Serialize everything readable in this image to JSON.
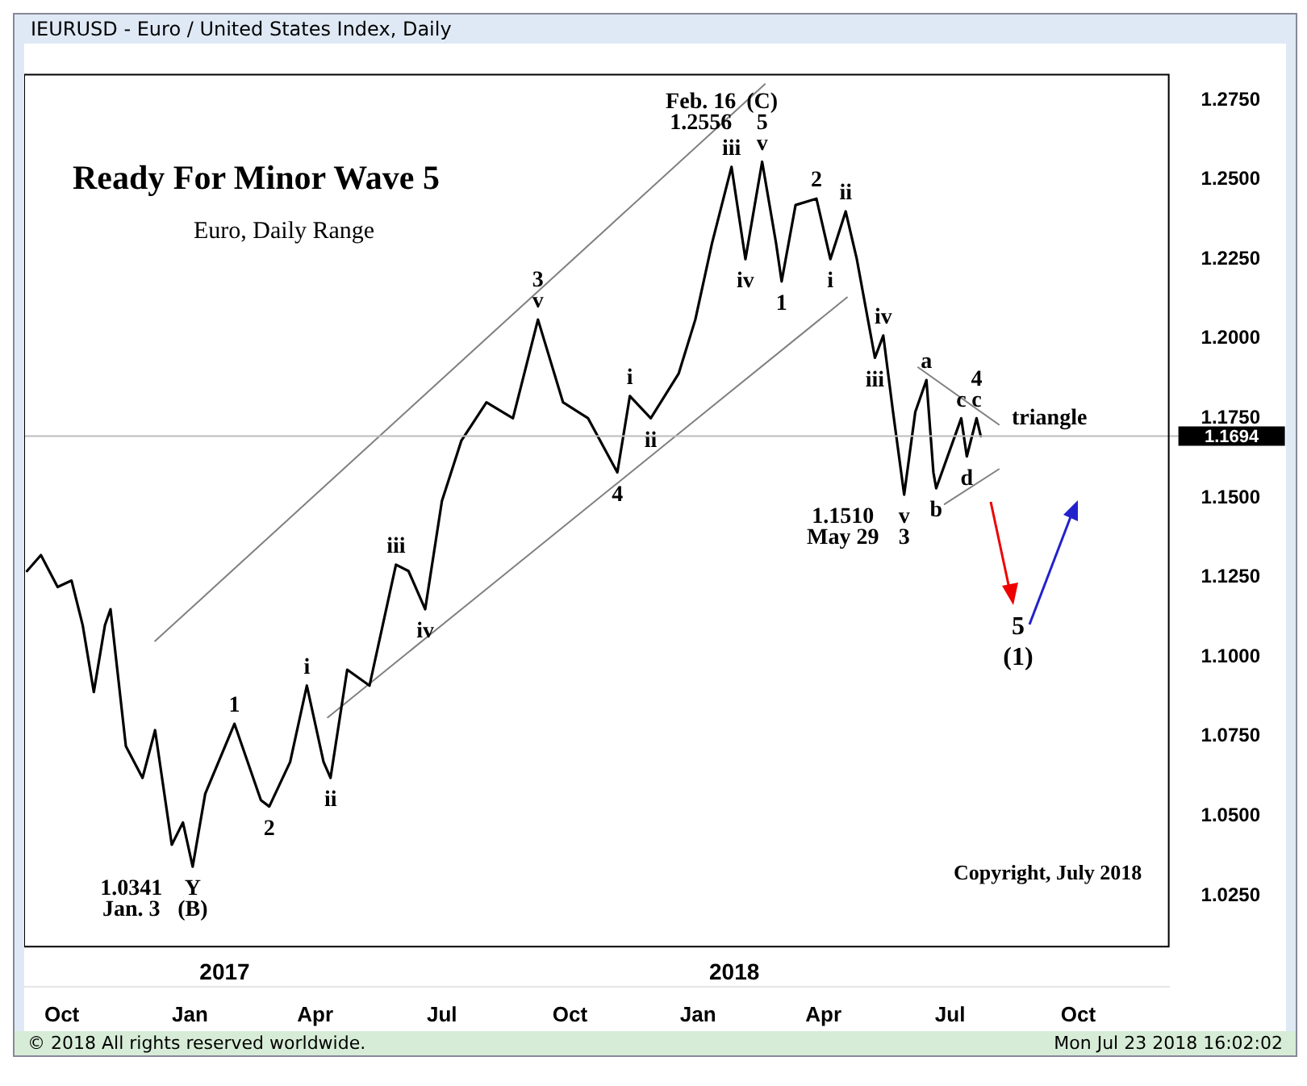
{
  "chart_data": {
    "type": "line",
    "title": "Ready For Minor Wave 5",
    "subtitle": "Euro, Daily Range",
    "xlim": [
      "2016-09-04",
      "2018-12-05"
    ],
    "ylim": [
      1.009,
      1.283
    ],
    "xticks": [
      {
        "value": "2016-10-01",
        "label": "Oct"
      },
      {
        "value": "2017-01-01",
        "label": "Jan"
      },
      {
        "value": "2017-04-01",
        "label": "Apr"
      },
      {
        "value": "2017-07-01",
        "label": "Jul"
      },
      {
        "value": "2017-10-01",
        "label": "Oct"
      },
      {
        "value": "2018-01-01",
        "label": "Jan"
      },
      {
        "value": "2018-04-01",
        "label": "Apr"
      },
      {
        "value": "2018-07-01",
        "label": "Jul"
      },
      {
        "value": "2018-10-01",
        "label": "Oct"
      }
    ],
    "x2lim": [
      "2016-09-04",
      "2018-12-05"
    ],
    "x2ticks": [
      {
        "value": "2017-01-26",
        "label": "2017"
      },
      {
        "value": "2018-01-27",
        "label": "2018"
      }
    ],
    "yticks": [
      {
        "value": 1.025,
        "label": "1.0250"
      },
      {
        "value": 1.05,
        "label": "1.0500"
      },
      {
        "value": 1.075,
        "label": "1.0750"
      },
      {
        "value": 1.1,
        "label": "1.1000"
      },
      {
        "value": 1.125,
        "label": "1.1250"
      },
      {
        "value": 1.15,
        "label": "1.1500"
      },
      {
        "value": 1.175,
        "label": "1.1750"
      },
      {
        "value": 1.2,
        "label": "1.2000"
      },
      {
        "value": 1.225,
        "label": "1.2250"
      },
      {
        "value": 1.25,
        "label": "1.2500"
      },
      {
        "value": 1.275,
        "label": "1.2750"
      }
    ],
    "grid": false,
    "legend": false,
    "marker": "none",
    "line_style": "solid",
    "series": [
      {
        "color": "#000000",
        "x": [
          "2016-09-06",
          "2016-09-16",
          "2016-09-28",
          "2016-10-08",
          "2016-10-16",
          "2016-10-24",
          "2016-11-01",
          "2016-11-05",
          "2016-11-16",
          "2016-11-28",
          "2016-12-07",
          "2016-12-19",
          "2016-12-27",
          "2017-01-03",
          "2017-01-12",
          "2017-02-02",
          "2017-02-21",
          "2017-02-27",
          "2017-03-14",
          "2017-03-26",
          "2017-04-07",
          "2017-04-12",
          "2017-04-24",
          "2017-05-10",
          "2017-05-29",
          "2017-06-07",
          "2017-06-19",
          "2017-07-01",
          "2017-07-15",
          "2017-08-02",
          "2017-08-21",
          "2017-09-08",
          "2017-09-26",
          "2017-10-14",
          "2017-11-04",
          "2017-11-13",
          "2017-11-28",
          "2017-12-18",
          "2017-12-30",
          "2018-01-11",
          "2018-01-25",
          "2018-02-04",
          "2018-02-16",
          "2018-02-26",
          "2018-03-02",
          "2018-03-12",
          "2018-03-27",
          "2018-04-06",
          "2018-04-17",
          "2018-04-25",
          "2018-05-08",
          "2018-05-14",
          "2018-05-21",
          "2018-05-29",
          "2018-06-06",
          "2018-06-14",
          "2018-06-19",
          "2018-06-21",
          "2018-07-09",
          "2018-07-13",
          "2018-07-20",
          "2018-07-23"
        ],
        "values": [
          1.127,
          1.132,
          1.122,
          1.124,
          1.11,
          1.089,
          1.11,
          1.115,
          1.072,
          1.062,
          1.077,
          1.041,
          1.048,
          1.0341,
          1.057,
          1.079,
          1.055,
          1.053,
          1.067,
          1.091,
          1.067,
          1.062,
          1.096,
          1.091,
          1.129,
          1.127,
          1.115,
          1.149,
          1.168,
          1.18,
          1.175,
          1.206,
          1.18,
          1.175,
          1.158,
          1.182,
          1.175,
          1.189,
          1.206,
          1.23,
          1.254,
          1.225,
          1.2556,
          1.23,
          1.218,
          1.242,
          1.244,
          1.225,
          1.24,
          1.225,
          1.194,
          1.201,
          1.177,
          1.151,
          1.177,
          1.187,
          1.158,
          1.153,
          1.175,
          1.163,
          1.175,
          1.1694
        ]
      },
      {
        "color": "#808080",
        "x": [
          "2016-12-07",
          "2018-02-18"
        ],
        "values": [
          1.105,
          1.28
        ]
      },
      {
        "color": "#808080",
        "x": [
          "2017-04-10",
          "2018-04-18"
        ],
        "values": [
          1.081,
          1.213
        ]
      },
      {
        "color": "#808080",
        "x": [
          "2018-06-08",
          "2018-08-05"
        ],
        "values": [
          1.191,
          1.173
        ]
      },
      {
        "color": "#808080",
        "x": [
          "2018-06-27",
          "2018-08-05"
        ],
        "values": [
          1.148,
          1.159
        ]
      }
    ],
    "ref_lines": [
      {
        "axis": "y",
        "value": 1.1694,
        "label": "1.1694"
      }
    ],
    "annotations": [
      "IEURUSD - Euro / United States Index, Daily",
      "Copyright, July 2018",
      "5",
      "(1)",
      "© 2018 All rights reserved worldwide.",
      "Mon Jul 23 2018 16:02:02",
      {
        "text": "v",
        "x": "2018-02-16",
        "y": 1.2556
      },
      {
        "text": "5",
        "x": "2018-02-16",
        "y": 1.2556
      },
      {
        "text": "(C)",
        "x": "2018-02-16",
        "y": 1.2556
      },
      {
        "text": "1.2556",
        "x": "2018-02-16",
        "y": 1.2556
      },
      {
        "text": "Feb. 16",
        "x": "2018-02-16",
        "y": 1.2556
      },
      {
        "text": "iii",
        "x": "2018-01-25",
        "y": 1.254
      },
      {
        "text": "iv",
        "x": "2018-02-04",
        "y": 1.225
      },
      {
        "text": "1",
        "x": "2018-03-02",
        "y": 1.218
      },
      {
        "text": "2",
        "x": "2018-03-27",
        "y": 1.244
      },
      {
        "text": "ii",
        "x": "2018-04-17",
        "y": 1.24
      },
      {
        "text": "i",
        "x": "2018-04-06",
        "y": 1.225
      },
      {
        "text": "iv",
        "x": "2018-05-14",
        "y": 1.201
      },
      {
        "text": "iii",
        "x": "2018-05-08",
        "y": 1.194
      },
      {
        "text": "v",
        "x": "2018-05-29",
        "y": 1.151
      },
      {
        "text": "3",
        "x": "2018-05-29",
        "y": 1.151
      },
      {
        "text": "1.1510",
        "x": "2018-05-29",
        "y": 1.151
      },
      {
        "text": "May 29",
        "x": "2018-05-29",
        "y": 1.151
      },
      {
        "text": "a",
        "x": "2018-06-14",
        "y": 1.187
      },
      {
        "text": "b",
        "x": "2018-06-21",
        "y": 1.153
      },
      {
        "text": "c",
        "x": "2018-07-09",
        "y": 1.175
      },
      {
        "text": "d",
        "x": "2018-07-13",
        "y": 1.163
      },
      {
        "text": "c",
        "x": "2018-07-20",
        "y": 1.175
      },
      {
        "text": "4",
        "x": "2018-07-20",
        "y": 1.175
      },
      {
        "text": "triangle",
        "x": "2018-08-05",
        "y": 1.173
      },
      {
        "text": "v",
        "x": "2017-09-08",
        "y": 1.206
      },
      {
        "text": "3",
        "x": "2017-09-08",
        "y": 1.206
      },
      {
        "text": "4",
        "x": "2017-11-04",
        "y": 1.158
      },
      {
        "text": "i",
        "x": "2017-11-13",
        "y": 1.182
      },
      {
        "text": "ii",
        "x": "2017-11-28",
        "y": 1.175
      },
      {
        "text": "iii",
        "x": "2017-05-29",
        "y": 1.129
      },
      {
        "text": "iv",
        "x": "2017-06-19",
        "y": 1.115
      },
      {
        "text": "i",
        "x": "2017-03-26",
        "y": 1.091
      },
      {
        "text": "ii",
        "x": "2017-04-12",
        "y": 1.062
      },
      {
        "text": "1",
        "x": "2017-02-02",
        "y": 1.079
      },
      {
        "text": "2",
        "x": "2017-02-27",
        "y": 1.053
      },
      {
        "text": "Y",
        "x": "2017-01-03",
        "y": 1.0341
      },
      {
        "text": "(B)",
        "x": "2017-01-03",
        "y": 1.0341
      },
      {
        "text": "1.0341",
        "x": "2017-01-03",
        "y": 1.0341
      },
      {
        "text": "Jan. 3",
        "x": "2017-01-03",
        "y": 1.0341
      }
    ]
  }
}
